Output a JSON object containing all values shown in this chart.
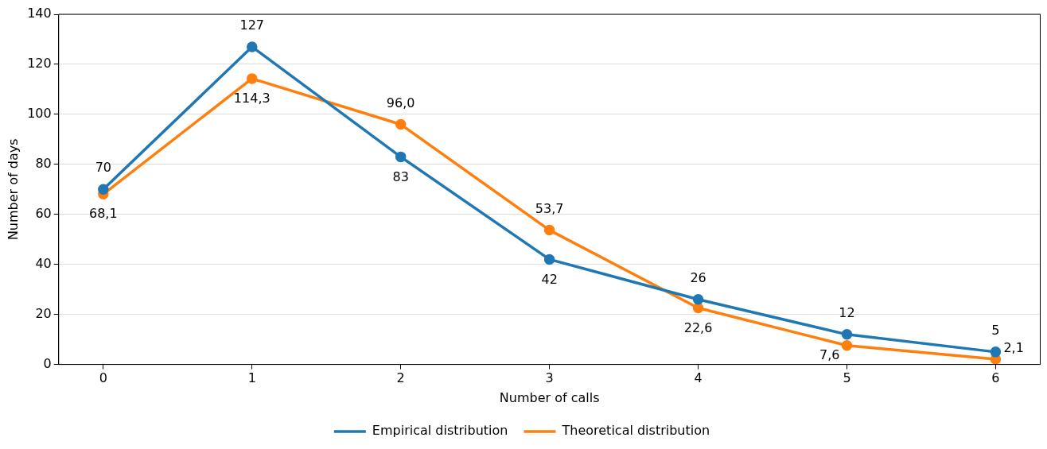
{
  "chart_data": {
    "type": "line",
    "xlabel": "Number of calls",
    "ylabel": "Number of days",
    "x": [
      0,
      1,
      2,
      3,
      4,
      5,
      6
    ],
    "series": [
      {
        "name": "Empirical distribution",
        "color": "#1f77b4",
        "values": [
          70,
          127,
          83,
          42,
          26,
          12,
          5
        ],
        "value_labels": [
          "70",
          "127",
          "83",
          "42",
          "26",
          "12",
          "5"
        ]
      },
      {
        "name": "Theoretical distribution",
        "color": "#ff7f0e",
        "values": [
          68.1,
          114.3,
          96.0,
          53.7,
          22.6,
          7.6,
          2.1
        ],
        "value_labels": [
          "68,1",
          "114,3",
          "96,0",
          "53,7",
          "22,6",
          "7,6",
          "2,1"
        ]
      }
    ],
    "xlim": [
      -0.3,
      6.3
    ],
    "xticks": [
      0,
      1,
      2,
      3,
      4,
      5,
      6
    ],
    "ylim": [
      0,
      140
    ],
    "yticks": [
      0,
      20,
      40,
      60,
      80,
      100,
      120,
      140
    ],
    "grid": "y",
    "legend": "bottom",
    "marker": "circle",
    "line_style": "solid"
  }
}
